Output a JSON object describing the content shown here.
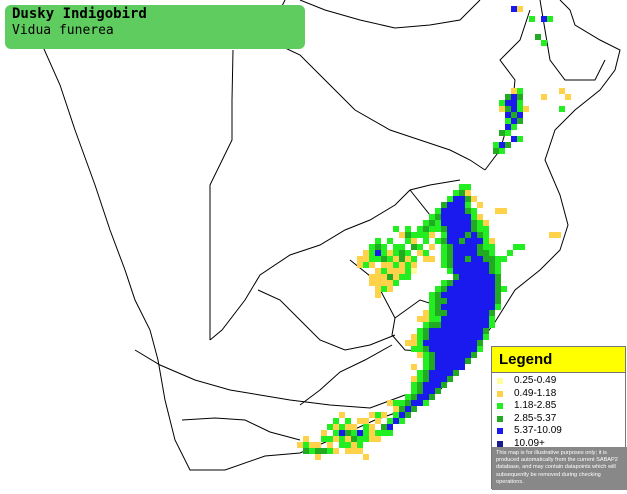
{
  "title": {
    "common_name": "Dusky Indigobird",
    "scientific_name": "Vidua funerea"
  },
  "legend": {
    "heading": "Legend",
    "items": [
      {
        "label": "0.25-0.49",
        "color": "#ffffa0"
      },
      {
        "label": "0.49-1.18",
        "color": "#ffd24a"
      },
      {
        "label": "1.18-2.85",
        "color": "#22ee22"
      },
      {
        "label": "2.85-5.37",
        "color": "#22aa22"
      },
      {
        "label": "5.37-10.09",
        "color": "#1a1aee"
      },
      {
        "label": "10.09+",
        "color": "#1a1a90"
      }
    ],
    "disclaimer": "This map is for illustrative purposes only; it is produced automatically from the current SABAP2 database, and may contain datapoints which will subsequently be removed during checking operations."
  },
  "colors": {
    "title_box": "#5ecc5e",
    "legend_header": "#ffff00",
    "border_lines": "#000000"
  }
}
